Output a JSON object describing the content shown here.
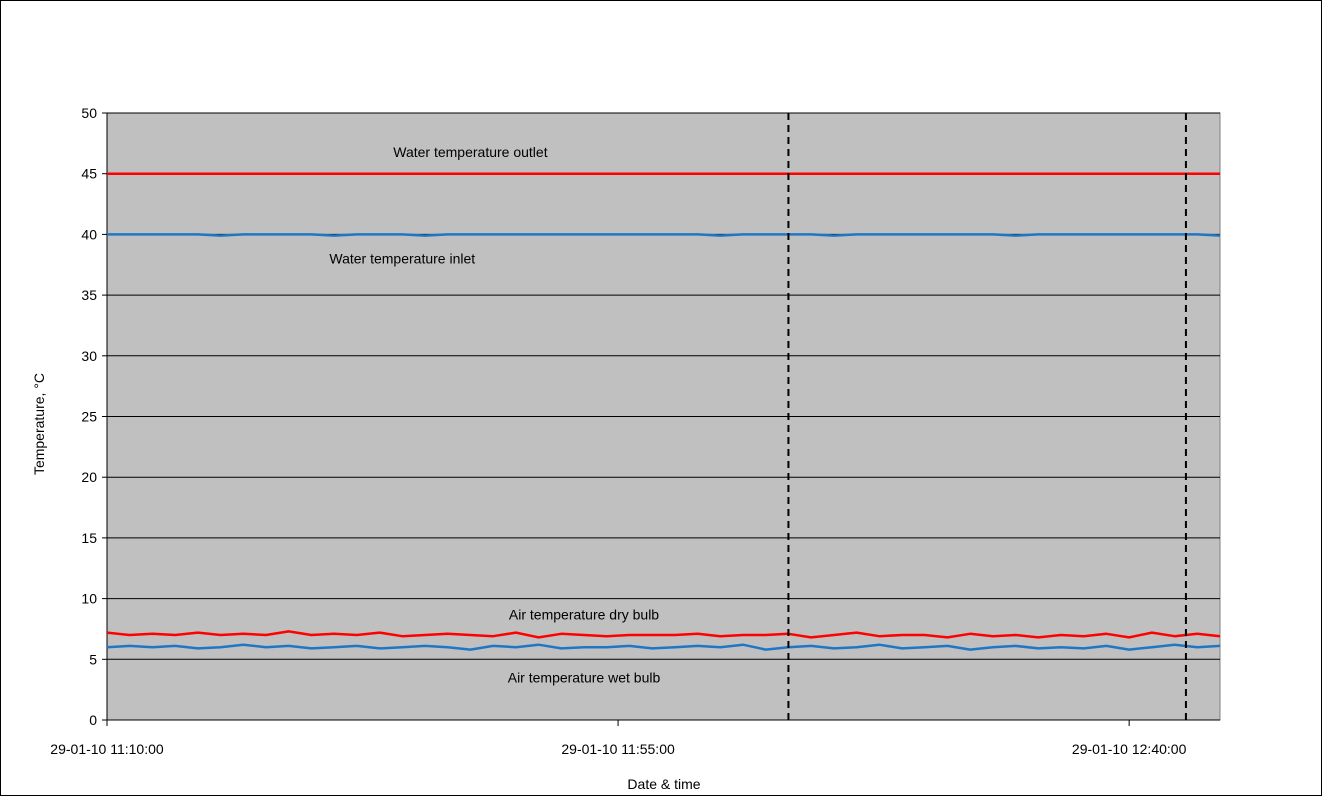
{
  "chart_data": {
    "type": "line",
    "xlabel": "Date & time",
    "ylabel": "Temperature,  °C",
    "ylim": [
      0,
      50
    ],
    "yticks": [
      0,
      5,
      10,
      15,
      20,
      25,
      30,
      35,
      40,
      45,
      50
    ],
    "xlim": [
      "29-01-10 11:10:00",
      "29-01-10 12:48:00"
    ],
    "xticks": [
      "29-01-10 11:10:00",
      "29-01-10 11:55:00",
      "29-01-10 12:40:00"
    ],
    "grid": "horizontal",
    "plot_background": "#c0c0c0",
    "x_interval_minutes": 2,
    "series": [
      {
        "name": "Water temperature outlet",
        "color": "#ff0000",
        "values": [
          45,
          45,
          45,
          45,
          45,
          45,
          45,
          45,
          45,
          45,
          45,
          45,
          45,
          45,
          45,
          45,
          45,
          45,
          45,
          45,
          45,
          45,
          45,
          45,
          45,
          45,
          45,
          45,
          45,
          45,
          45,
          45,
          45,
          45,
          45,
          45,
          45,
          45,
          45,
          45,
          45,
          45,
          45,
          45,
          45,
          45,
          45,
          45,
          45,
          45
        ]
      },
      {
        "name": "Water temperature inlet",
        "color": "#1f77c4",
        "values": [
          40,
          40,
          40,
          40,
          40,
          39.9,
          40,
          40,
          40,
          40,
          39.9,
          40,
          40,
          40,
          39.9,
          40,
          40,
          40,
          40,
          40,
          40,
          40,
          40,
          40,
          40,
          40,
          40,
          39.9,
          40,
          40,
          40,
          40,
          39.9,
          40,
          40,
          40,
          40,
          40,
          40,
          40,
          39.9,
          40,
          40,
          40,
          40,
          40,
          40,
          40,
          40,
          39.9
        ]
      },
      {
        "name": "Air temperature dry bulb",
        "color": "#ff0000",
        "values": [
          7.2,
          7.0,
          7.1,
          7.0,
          7.2,
          7.0,
          7.1,
          7.0,
          7.3,
          7.0,
          7.1,
          7.0,
          7.2,
          6.9,
          7.0,
          7.1,
          7.0,
          6.9,
          7.2,
          6.8,
          7.1,
          7.0,
          6.9,
          7.0,
          7.0,
          7.0,
          7.1,
          6.9,
          7.0,
          7.0,
          7.1,
          6.8,
          7.0,
          7.2,
          6.9,
          7.0,
          7.0,
          6.8,
          7.1,
          6.9,
          7.0,
          6.8,
          7.0,
          6.9,
          7.1,
          6.8,
          7.2,
          6.9,
          7.1,
          6.9
        ]
      },
      {
        "name": "Air temperature wet bulb",
        "color": "#1f77c4",
        "values": [
          6.0,
          6.1,
          6.0,
          6.1,
          5.9,
          6.0,
          6.2,
          6.0,
          6.1,
          5.9,
          6.0,
          6.1,
          5.9,
          6.0,
          6.1,
          6.0,
          5.8,
          6.1,
          6.0,
          6.2,
          5.9,
          6.0,
          6.0,
          6.1,
          5.9,
          6.0,
          6.1,
          6.0,
          6.2,
          5.8,
          6.0,
          6.1,
          5.9,
          6.0,
          6.2,
          5.9,
          6.0,
          6.1,
          5.8,
          6.0,
          6.1,
          5.9,
          6.0,
          5.9,
          6.1,
          5.8,
          6.0,
          6.2,
          6.0,
          6.1
        ]
      }
    ],
    "annotations": [
      {
        "text": "Water temperature outlet",
        "x": "29-01-10 11:42:00",
        "y": 46.8
      },
      {
        "text": "Water temperature inlet",
        "x": "29-01-10 11:36:00",
        "y": 38.0
      },
      {
        "text": "Air temperature dry bulb",
        "x": "29-01-10 11:52:00",
        "y": 8.7
      },
      {
        "text": "Air temperature wet bulb",
        "x": "29-01-10 11:52:00",
        "y": 3.5
      }
    ],
    "vertical_markers": [
      {
        "x": "29-01-10 12:10:00",
        "style": "dashed",
        "color": "#000000"
      },
      {
        "x": "29-01-10 12:45:00",
        "style": "dashed",
        "color": "#000000"
      }
    ]
  }
}
